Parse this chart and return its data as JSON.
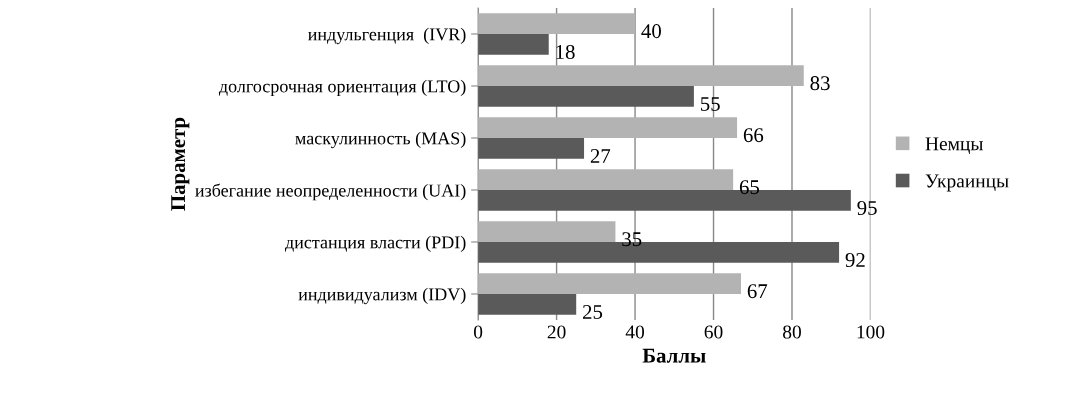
{
  "chart_data": {
    "type": "bar",
    "orientation": "horizontal",
    "xlabel": "Баллы",
    "ylabel": "Параметр",
    "categories": [
      "индульгенция  (IVR)",
      "долгосрочная ориентация (LTO)",
      "маскулинность (MAS)",
      "избегание неопределенности (UAI)",
      "дистанция власти (PDI)",
      "индивидуализм (IDV)"
    ],
    "series": [
      {
        "name": "Немцы",
        "color": "#b3b3b3",
        "values": [
          40,
          83,
          66,
          65,
          35,
          67
        ]
      },
      {
        "name": "Украинцы",
        "color": "#5a5a5a",
        "values": [
          18,
          55,
          27,
          95,
          92,
          25
        ]
      }
    ],
    "xlim": [
      0,
      100
    ],
    "xticks": [
      0,
      20,
      40,
      60,
      80,
      100
    ],
    "grid": "x",
    "legend": "right",
    "data_labels": true
  }
}
